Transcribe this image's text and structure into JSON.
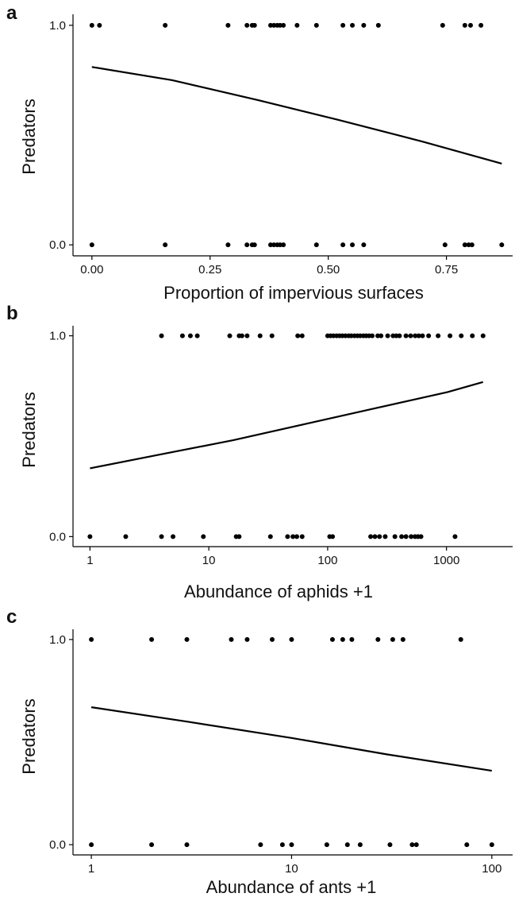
{
  "chart_data": [
    {
      "panel": "a",
      "type": "scatter",
      "xlabel": "Proportion of impervious surfaces",
      "ylabel": "Predators",
      "x_scale": "linear",
      "xlim": [
        -0.04,
        0.89
      ],
      "ylim": [
        -0.05,
        1.05
      ],
      "x_ticks": [
        {
          "value": 0.0,
          "label": "0.00"
        },
        {
          "value": 0.25,
          "label": "0.25"
        },
        {
          "value": 0.5,
          "label": "0.50"
        },
        {
          "value": 0.75,
          "label": "0.75"
        }
      ],
      "y_ticks": [
        {
          "value": 0,
          "label": "0.0"
        },
        {
          "value": 1,
          "label": "1.0"
        }
      ],
      "points_y1_x": [
        0.0,
        0.016,
        0.155,
        0.288,
        0.328,
        0.339,
        0.344,
        0.378,
        0.385,
        0.392,
        0.398,
        0.405,
        0.434,
        0.475,
        0.531,
        0.551,
        0.575,
        0.606,
        0.742,
        0.789,
        0.801,
        0.823
      ],
      "points_y0_x": [
        0.0,
        0.155,
        0.288,
        0.328,
        0.339,
        0.344,
        0.378,
        0.385,
        0.392,
        0.398,
        0.405,
        0.475,
        0.531,
        0.551,
        0.575,
        0.747,
        0.789,
        0.797,
        0.804,
        0.867
      ],
      "fit_line": {
        "x": [
          0.0,
          0.17,
          0.35,
          0.52,
          0.7,
          0.867
        ],
        "y": [
          0.81,
          0.75,
          0.66,
          0.57,
          0.47,
          0.37
        ]
      }
    },
    {
      "panel": "b",
      "type": "scatter",
      "xlabel": "Abundance of aphids +1",
      "ylabel": "Predators",
      "x_scale": "log",
      "xlim": [
        0.72,
        3600
      ],
      "ylim": [
        -0.05,
        1.05
      ],
      "x_ticks": [
        {
          "value": 1,
          "label": "1"
        },
        {
          "value": 10,
          "label": "10"
        },
        {
          "value": 100,
          "label": "100"
        },
        {
          "value": 1000,
          "label": "1000"
        }
      ],
      "y_ticks": [
        {
          "value": 0,
          "label": "0.0"
        },
        {
          "value": 1,
          "label": "1.0"
        }
      ],
      "points_y1_x": [
        4,
        6,
        7,
        8,
        15,
        18,
        19,
        21,
        27,
        34,
        56,
        61,
        100,
        106,
        112,
        119,
        126,
        133,
        141,
        150,
        158,
        168,
        178,
        188,
        200,
        211,
        223,
        237,
        264,
        281,
        320,
        355,
        378,
        402,
        456,
        499,
        545,
        584,
        628,
        707,
        850,
        1070,
        1330,
        1650,
        2030
      ],
      "points_y0_x": [
        1,
        2,
        4,
        5,
        9,
        17,
        18,
        33,
        46,
        51,
        55,
        61,
        104,
        110,
        230,
        250,
        273,
        305,
        368,
        419,
        456,
        504,
        544,
        575,
        610,
        1180
      ],
      "fit_line": {
        "x": [
          1,
          4,
          16,
          64,
          256,
          1024,
          2030
        ],
        "y": [
          0.34,
          0.41,
          0.48,
          0.56,
          0.64,
          0.72,
          0.77
        ]
      }
    },
    {
      "panel": "c",
      "type": "scatter",
      "xlabel": "Abundance of ants +1",
      "ylabel": "Predators",
      "x_scale": "log",
      "xlim": [
        0.81,
        127
      ],
      "ylim": [
        -0.05,
        1.05
      ],
      "x_ticks": [
        {
          "value": 1,
          "label": "1"
        },
        {
          "value": 10,
          "label": "10"
        },
        {
          "value": 100,
          "label": "100"
        }
      ],
      "y_ticks": [
        {
          "value": 0,
          "label": "0.0"
        },
        {
          "value": 1,
          "label": "1.0"
        }
      ],
      "points_y1_x": [
        1,
        2,
        3,
        5,
        6,
        8,
        10,
        16,
        18,
        20,
        27,
        32,
        36,
        70
      ],
      "points_y0_x": [
        1,
        2,
        3,
        7,
        9,
        10,
        15,
        19,
        22,
        31,
        40,
        42,
        75,
        100
      ],
      "fit_line": {
        "x": [
          1,
          3,
          10,
          30,
          100
        ],
        "y": [
          0.67,
          0.6,
          0.52,
          0.44,
          0.36
        ]
      }
    }
  ]
}
